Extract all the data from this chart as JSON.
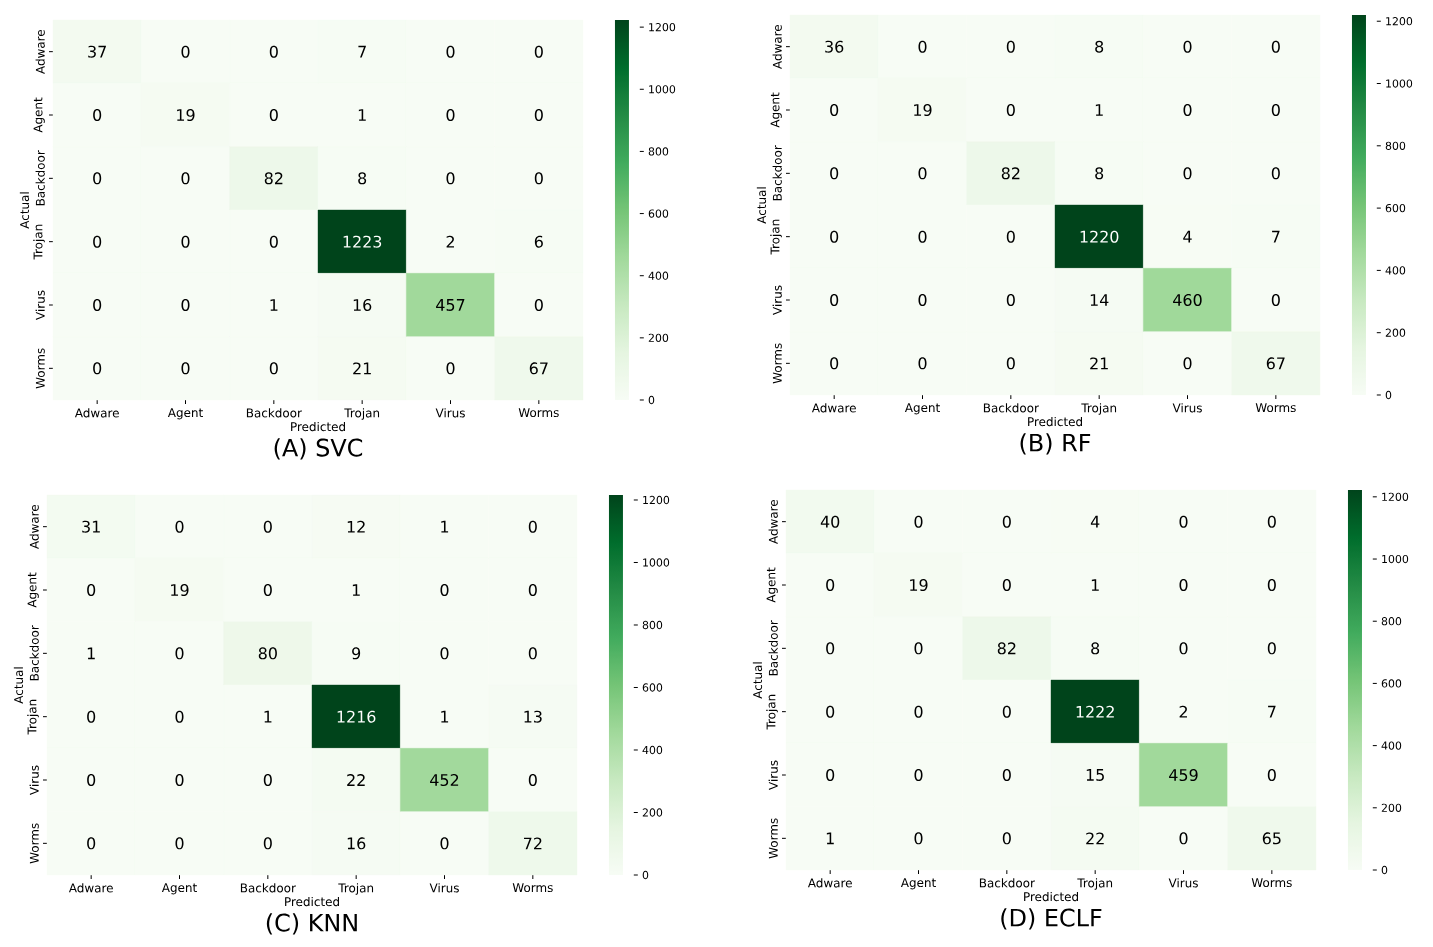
{
  "chart_data": [
    {
      "type": "heatmap",
      "title": "(A) SVC",
      "xlabel": "Predicted",
      "ylabel": "Actual",
      "categories": [
        "Adware",
        "Agent",
        "Backdoor",
        "Trojan",
        "Virus",
        "Worms"
      ],
      "y_categories": [
        "Adware",
        "Agent",
        "Backdoor",
        "Trojan",
        "Virus",
        "Worms"
      ],
      "cells": [
        [
          37,
          0,
          0,
          7,
          0,
          0
        ],
        [
          0,
          19,
          0,
          1,
          0,
          0
        ],
        [
          0,
          0,
          82,
          8,
          0,
          0
        ],
        [
          0,
          0,
          0,
          1223,
          2,
          6
        ],
        [
          0,
          0,
          1,
          16,
          457,
          0
        ],
        [
          0,
          0,
          0,
          21,
          0,
          67
        ]
      ],
      "clim": [
        0,
        1223
      ],
      "cticks": [
        0,
        200,
        400,
        600,
        800,
        1000,
        1200
      ],
      "data_labels": true
    },
    {
      "type": "heatmap",
      "title": "(B) RF",
      "xlabel": "Predicted",
      "ylabel": "Actual",
      "categories": [
        "Adware",
        "Agent",
        "Backdoor",
        "Trojan",
        "Virus",
        "Worms"
      ],
      "y_categories": [
        "Adware",
        "Agent",
        "Backdoor",
        "Trojan",
        "Virus",
        "Worms"
      ],
      "cells": [
        [
          36,
          0,
          0,
          8,
          0,
          0
        ],
        [
          0,
          19,
          0,
          1,
          0,
          0
        ],
        [
          0,
          0,
          82,
          8,
          0,
          0
        ],
        [
          0,
          0,
          0,
          1220,
          4,
          7
        ],
        [
          0,
          0,
          0,
          14,
          460,
          0
        ],
        [
          0,
          0,
          0,
          21,
          0,
          67
        ]
      ],
      "clim": [
        0,
        1220
      ],
      "cticks": [
        0,
        200,
        400,
        600,
        800,
        1000,
        1200
      ],
      "data_labels": true
    },
    {
      "type": "heatmap",
      "title": "(C) KNN",
      "xlabel": "Predicted",
      "ylabel": "Actual",
      "categories": [
        "Adware",
        "Agent",
        "Backdoor",
        "Trojan",
        "Virus",
        "Worms"
      ],
      "y_categories": [
        "Adware",
        "Agent",
        "Backdoor",
        "Trojan",
        "Virus",
        "Worms"
      ],
      "cells": [
        [
          31,
          0,
          0,
          12,
          1,
          0
        ],
        [
          0,
          19,
          0,
          1,
          0,
          0
        ],
        [
          1,
          0,
          80,
          9,
          0,
          0
        ],
        [
          0,
          0,
          1,
          1216,
          1,
          13
        ],
        [
          0,
          0,
          0,
          22,
          452,
          0
        ],
        [
          0,
          0,
          0,
          16,
          0,
          72
        ]
      ],
      "clim": [
        0,
        1216
      ],
      "cticks": [
        0,
        200,
        400,
        600,
        800,
        1000,
        1200
      ],
      "data_labels": true
    },
    {
      "type": "heatmap",
      "title": "(D) ECLF",
      "xlabel": "Predicted",
      "ylabel": "Actual",
      "categories": [
        "Adware",
        "Agent",
        "Backdoor",
        "Trojan",
        "Virus",
        "Worms"
      ],
      "y_categories": [
        "Adware",
        "Agent",
        "Backdoor",
        "Trojan",
        "Virus",
        "Worms"
      ],
      "cells": [
        [
          40,
          0,
          0,
          4,
          0,
          0
        ],
        [
          0,
          19,
          0,
          1,
          0,
          0
        ],
        [
          0,
          0,
          82,
          8,
          0,
          0
        ],
        [
          0,
          0,
          0,
          1222,
          2,
          7
        ],
        [
          0,
          0,
          0,
          15,
          459,
          0
        ],
        [
          1,
          0,
          0,
          22,
          0,
          65
        ]
      ],
      "clim": [
        0,
        1222
      ],
      "cticks": [
        0,
        200,
        400,
        600,
        800,
        1000,
        1200
      ],
      "data_labels": true
    }
  ]
}
